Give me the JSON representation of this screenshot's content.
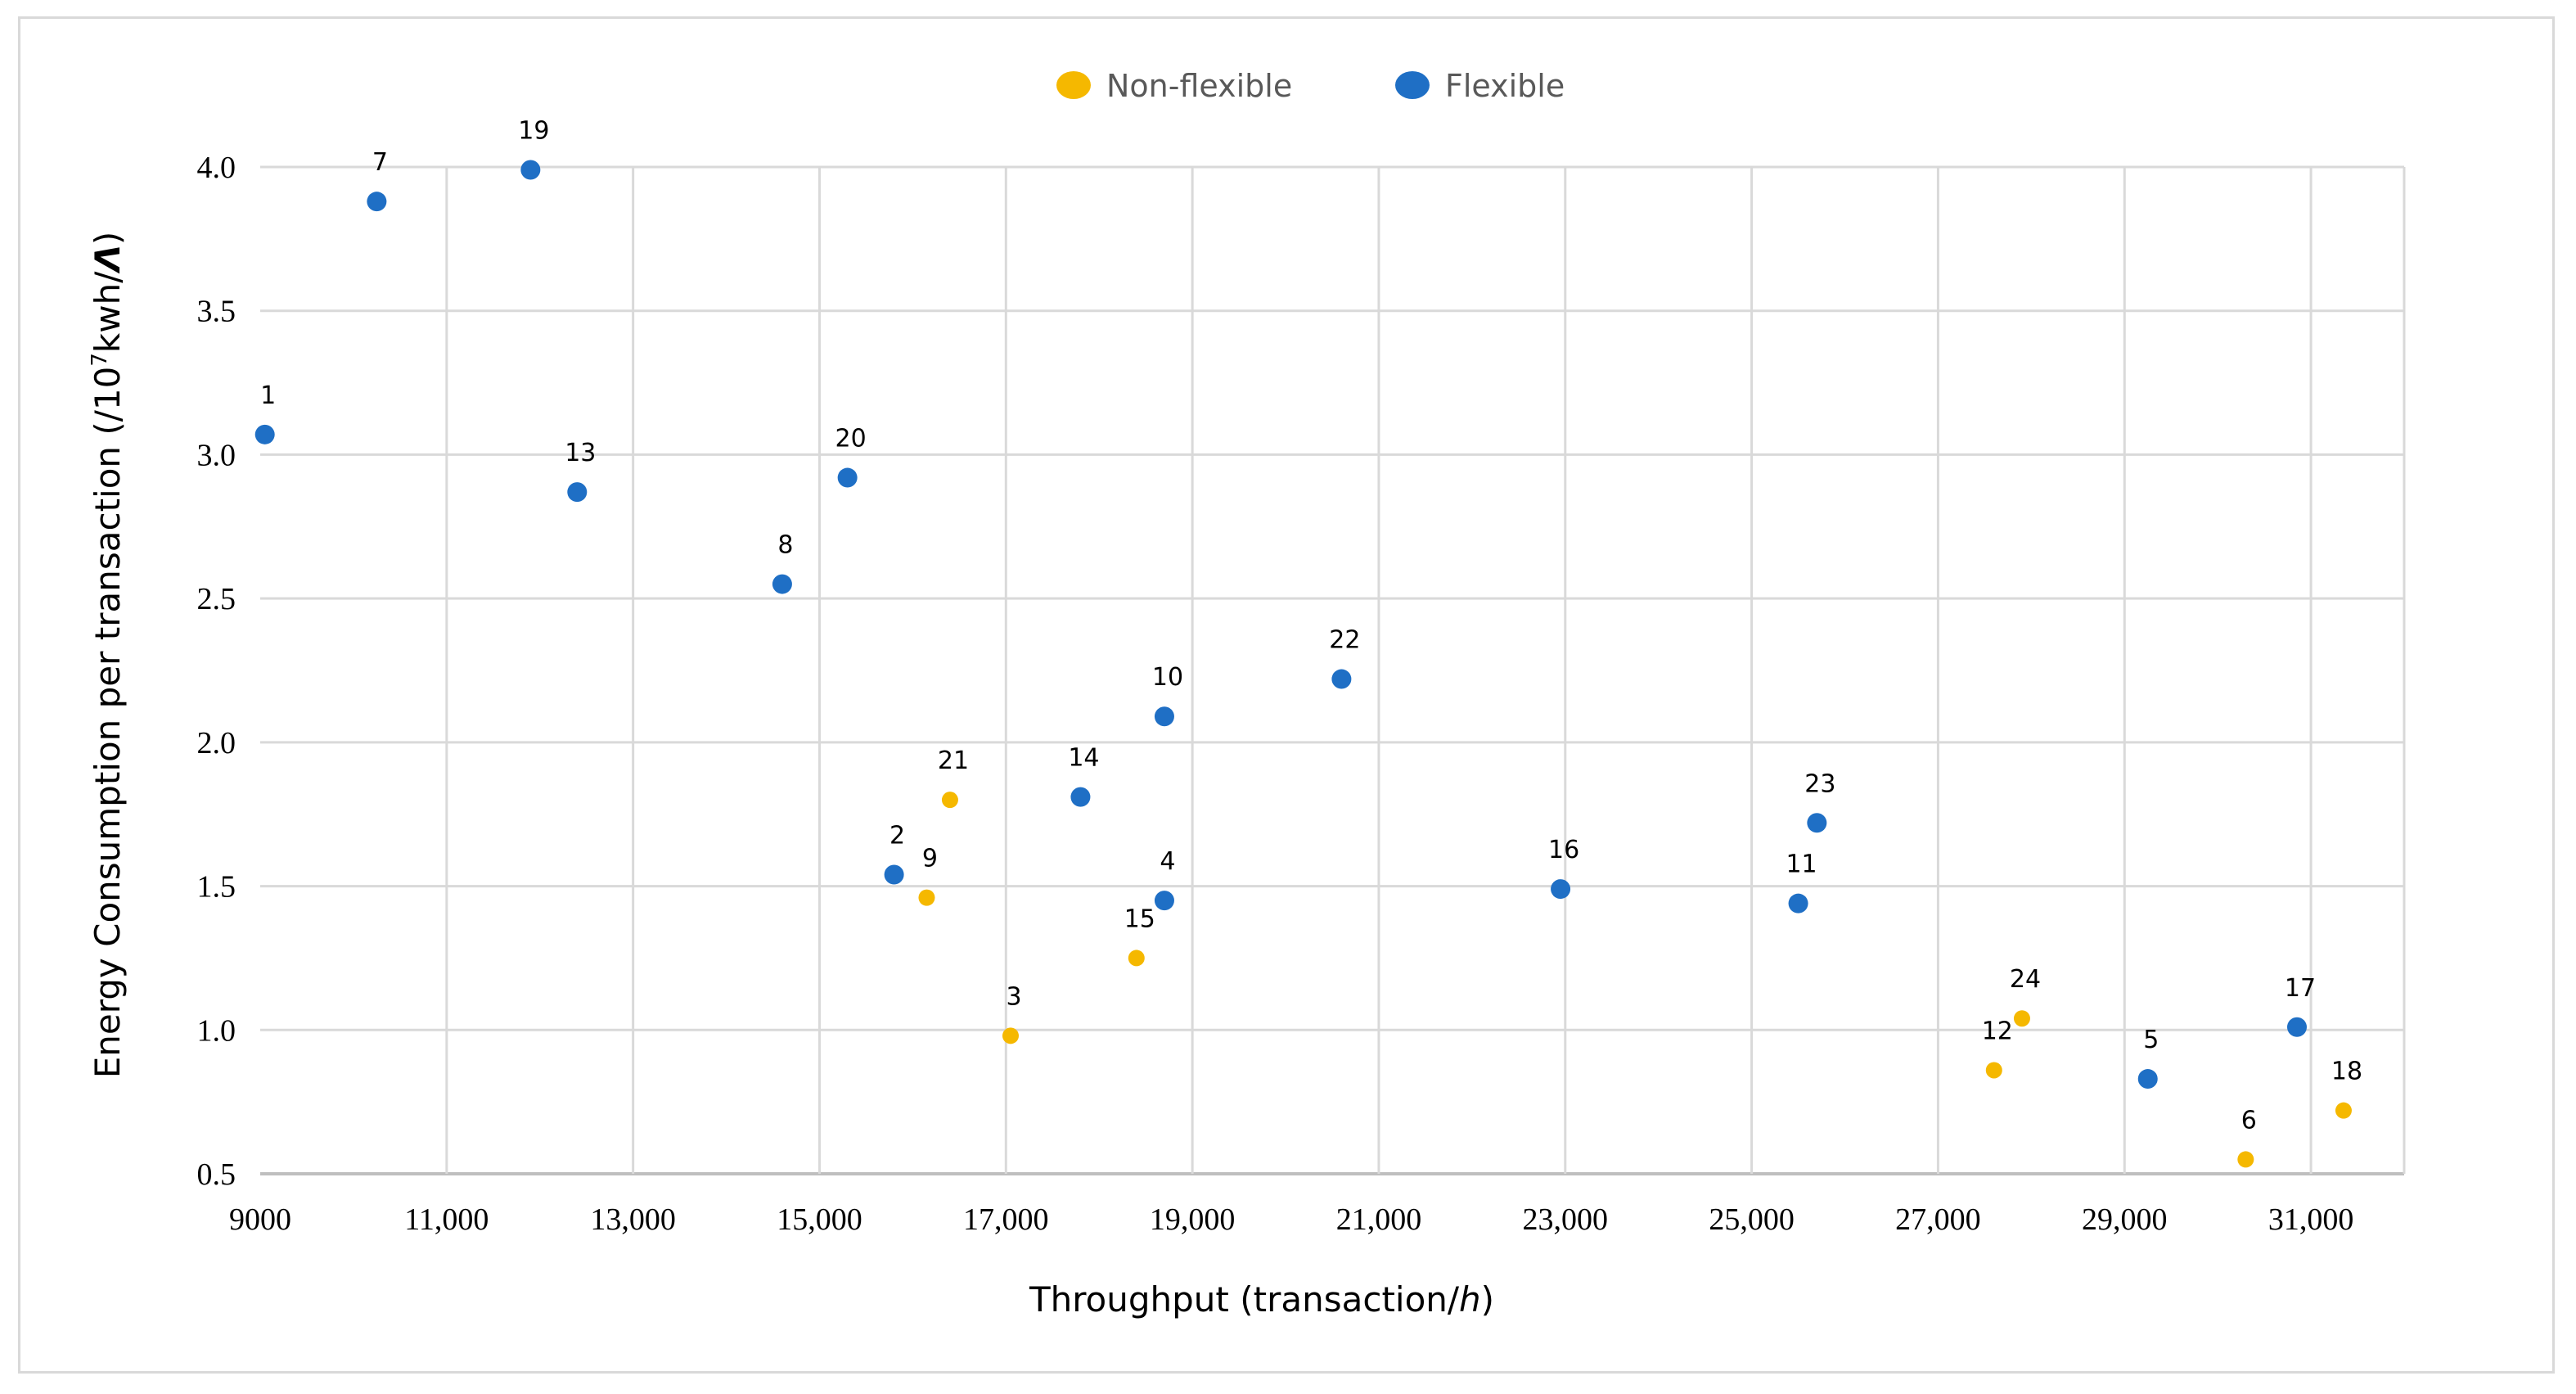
{
  "chart_data": {
    "type": "scatter",
    "title": "",
    "xlabel": "Throughput (transaction/h)",
    "xlabel_parts": [
      "Throughput (transaction/",
      "h",
      ")"
    ],
    "ylabel": "Energy Consumption per transaction (/10⁷kwh/Λ)",
    "ylabel_parts": [
      "Energy Consumption per transaction (/10",
      "7",
      "kwh/",
      "Λ",
      ")"
    ],
    "xlim": [
      9000,
      32000
    ],
    "ylim": [
      0.5,
      4.0
    ],
    "x_ticks": [
      9000,
      11000,
      13000,
      15000,
      17000,
      19000,
      21000,
      23000,
      25000,
      27000,
      29000,
      31000
    ],
    "x_tick_labels": [
      "9000",
      "11,000",
      "13,000",
      "15,000",
      "17,000",
      "19,000",
      "21,000",
      "23,000",
      "25,000",
      "27,000",
      "29,000",
      "31,000"
    ],
    "y_ticks": [
      0.5,
      1.0,
      1.5,
      2.0,
      2.5,
      3.0,
      3.5,
      4.0
    ],
    "y_tick_labels": [
      "0.5",
      "1.0",
      "1.5",
      "2.0",
      "2.5",
      "3.0",
      "3.5",
      "4.0"
    ],
    "grid": true,
    "legend_position": "top-center",
    "series": [
      {
        "name": "Non-flexible",
        "color": "#f5b800",
        "marker": "small-circle",
        "points": [
          {
            "label": "3",
            "x": 17050,
            "y": 0.98
          },
          {
            "label": "6",
            "x": 30300,
            "y": 0.55
          },
          {
            "label": "9",
            "x": 16150,
            "y": 1.46
          },
          {
            "label": "12",
            "x": 27600,
            "y": 0.86
          },
          {
            "label": "15",
            "x": 18400,
            "y": 1.25
          },
          {
            "label": "18",
            "x": 31350,
            "y": 0.72
          },
          {
            "label": "21",
            "x": 16400,
            "y": 1.8
          },
          {
            "label": "24",
            "x": 27900,
            "y": 1.04
          }
        ]
      },
      {
        "name": "Flexible",
        "color": "#1f6fc5",
        "marker": "circle",
        "points": [
          {
            "label": "1",
            "x": 9050,
            "y": 3.07
          },
          {
            "label": "2",
            "x": 15800,
            "y": 1.54
          },
          {
            "label": "4",
            "x": 18700,
            "y": 1.45
          },
          {
            "label": "5",
            "x": 29250,
            "y": 0.83
          },
          {
            "label": "7",
            "x": 10250,
            "y": 3.88
          },
          {
            "label": "8",
            "x": 14600,
            "y": 2.55
          },
          {
            "label": "10",
            "x": 18700,
            "y": 2.09
          },
          {
            "label": "11",
            "x": 25500,
            "y": 1.44
          },
          {
            "label": "13",
            "x": 12400,
            "y": 2.87
          },
          {
            "label": "14",
            "x": 17800,
            "y": 1.81
          },
          {
            "label": "16",
            "x": 22950,
            "y": 1.49
          },
          {
            "label": "17",
            "x": 30850,
            "y": 1.01
          },
          {
            "label": "19",
            "x": 11900,
            "y": 3.99
          },
          {
            "label": "20",
            "x": 15300,
            "y": 2.92
          },
          {
            "label": "22",
            "x": 20600,
            "y": 2.22
          },
          {
            "label": "23",
            "x": 25700,
            "y": 1.72
          }
        ]
      }
    ]
  }
}
